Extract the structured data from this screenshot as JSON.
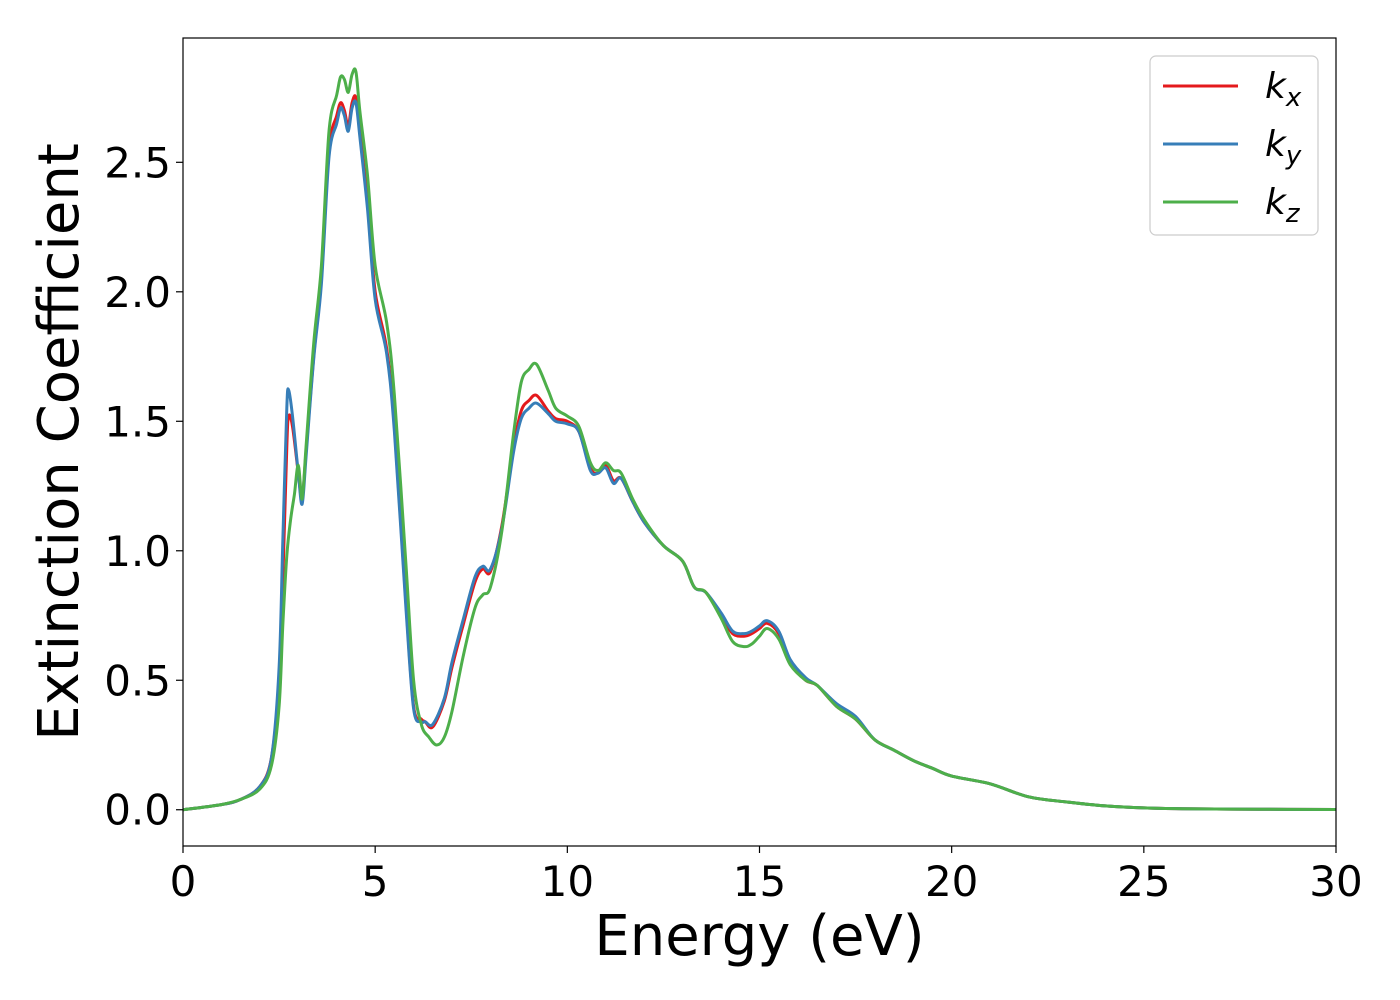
{
  "chart_data": {
    "type": "line",
    "xlabel": "Energy (eV)",
    "ylabel": "Extinction Coefficient",
    "xlim": [
      0,
      30
    ],
    "ylim": [
      -0.14,
      2.98
    ],
    "xticks": [
      0,
      5,
      10,
      15,
      20,
      25,
      30
    ],
    "xtick_labels": [
      "0",
      "5",
      "10",
      "15",
      "20",
      "25",
      "30"
    ],
    "yticks": [
      0.0,
      0.5,
      1.0,
      1.5,
      2.0,
      2.5
    ],
    "ytick_labels": [
      "0.0",
      "0.5",
      "1.0",
      "1.5",
      "2.0",
      "2.5"
    ],
    "grid": false,
    "legend_position": "top-right",
    "series": [
      {
        "name": "k",
        "subscript": "x",
        "color": "#e41a1c",
        "x": [
          0,
          1,
          1.5,
          2,
          2.3,
          2.5,
          2.6,
          2.7,
          2.75,
          2.85,
          3.0,
          3.1,
          3.2,
          3.4,
          3.6,
          3.8,
          4.0,
          4.1,
          4.2,
          4.3,
          4.4,
          4.5,
          4.6,
          4.8,
          5.0,
          5.3,
          5.5,
          5.8,
          6.0,
          6.2,
          6.3,
          6.5,
          6.8,
          7.0,
          7.3,
          7.6,
          7.8,
          8.0,
          8.3,
          8.6,
          8.8,
          9.0,
          9.2,
          9.5,
          9.7,
          10.0,
          10.3,
          10.6,
          10.8,
          11.0,
          11.2,
          11.4,
          11.7,
          12.0,
          12.5,
          13.0,
          13.3,
          13.6,
          14.0,
          14.3,
          14.6,
          14.8,
          15.0,
          15.2,
          15.5,
          15.8,
          16.2,
          16.5,
          17.0,
          17.5,
          18.0,
          18.5,
          19.0,
          19.5,
          20.0,
          21.0,
          22.0,
          23.0,
          24.0,
          25.0,
          26.0,
          28.0,
          30.0
        ],
        "y": [
          0,
          0.02,
          0.04,
          0.09,
          0.2,
          0.5,
          0.9,
          1.4,
          1.52,
          1.48,
          1.3,
          1.2,
          1.38,
          1.75,
          2.05,
          2.55,
          2.68,
          2.73,
          2.7,
          2.64,
          2.73,
          2.75,
          2.62,
          2.35,
          2.0,
          1.78,
          1.48,
          0.8,
          0.4,
          0.35,
          0.34,
          0.32,
          0.42,
          0.55,
          0.72,
          0.88,
          0.93,
          0.92,
          1.1,
          1.4,
          1.54,
          1.58,
          1.6,
          1.54,
          1.51,
          1.5,
          1.46,
          1.32,
          1.3,
          1.33,
          1.27,
          1.28,
          1.19,
          1.11,
          1.02,
          0.96,
          0.86,
          0.84,
          0.75,
          0.68,
          0.67,
          0.68,
          0.7,
          0.72,
          0.68,
          0.57,
          0.5,
          0.48,
          0.4,
          0.35,
          0.27,
          0.23,
          0.19,
          0.16,
          0.13,
          0.1,
          0.05,
          0.03,
          0.015,
          0.007,
          0.004,
          0.002,
          0.001
        ]
      },
      {
        "name": "k",
        "subscript": "y",
        "color": "#377eb8",
        "x": [
          0,
          1,
          1.5,
          2,
          2.3,
          2.5,
          2.6,
          2.7,
          2.75,
          2.85,
          3.0,
          3.1,
          3.2,
          3.4,
          3.6,
          3.8,
          4.0,
          4.1,
          4.2,
          4.3,
          4.4,
          4.5,
          4.6,
          4.8,
          5.0,
          5.3,
          5.5,
          5.8,
          6.0,
          6.2,
          6.3,
          6.5,
          6.8,
          7.0,
          7.3,
          7.6,
          7.8,
          8.0,
          8.3,
          8.6,
          8.8,
          9.0,
          9.2,
          9.5,
          9.7,
          10.0,
          10.3,
          10.6,
          10.8,
          11.0,
          11.2,
          11.4,
          11.7,
          12.0,
          12.5,
          13.0,
          13.3,
          13.6,
          14.0,
          14.3,
          14.6,
          14.8,
          15.0,
          15.2,
          15.5,
          15.8,
          16.2,
          16.5,
          17.0,
          17.5,
          18.0,
          18.5,
          19.0,
          19.5,
          20.0,
          21.0,
          22.0,
          23.0,
          24.0,
          25.0,
          26.0,
          28.0,
          30.0
        ],
        "y": [
          0,
          0.02,
          0.04,
          0.09,
          0.2,
          0.55,
          1.05,
          1.55,
          1.62,
          1.52,
          1.3,
          1.18,
          1.36,
          1.74,
          2.03,
          2.52,
          2.65,
          2.71,
          2.68,
          2.62,
          2.71,
          2.73,
          2.6,
          2.32,
          1.97,
          1.76,
          1.46,
          0.78,
          0.39,
          0.34,
          0.34,
          0.33,
          0.43,
          0.57,
          0.74,
          0.9,
          0.94,
          0.93,
          1.09,
          1.38,
          1.51,
          1.55,
          1.57,
          1.53,
          1.5,
          1.49,
          1.46,
          1.31,
          1.3,
          1.32,
          1.26,
          1.28,
          1.19,
          1.11,
          1.02,
          0.96,
          0.86,
          0.84,
          0.76,
          0.69,
          0.68,
          0.69,
          0.71,
          0.73,
          0.69,
          0.58,
          0.51,
          0.48,
          0.41,
          0.36,
          0.27,
          0.23,
          0.19,
          0.16,
          0.13,
          0.1,
          0.05,
          0.03,
          0.015,
          0.007,
          0.004,
          0.002,
          0.001
        ]
      },
      {
        "name": "k",
        "subscript": "z",
        "color": "#4daf4a",
        "x": [
          0,
          1,
          1.5,
          2,
          2.3,
          2.5,
          2.6,
          2.7,
          2.8,
          2.9,
          3.0,
          3.1,
          3.2,
          3.4,
          3.6,
          3.8,
          4.0,
          4.1,
          4.2,
          4.3,
          4.4,
          4.5,
          4.6,
          4.8,
          5.0,
          5.3,
          5.5,
          5.8,
          6.0,
          6.2,
          6.4,
          6.6,
          6.8,
          7.0,
          7.3,
          7.6,
          7.8,
          8.0,
          8.3,
          8.6,
          8.8,
          9.0,
          9.2,
          9.5,
          9.7,
          10.0,
          10.3,
          10.6,
          10.8,
          11.0,
          11.2,
          11.4,
          11.7,
          12.0,
          12.5,
          13.0,
          13.3,
          13.6,
          14.0,
          14.3,
          14.6,
          14.8,
          15.0,
          15.2,
          15.5,
          15.8,
          16.2,
          16.5,
          17.0,
          17.5,
          18.0,
          18.5,
          19.0,
          19.5,
          20.0,
          21.0,
          22.0,
          23.0,
          24.0,
          25.0,
          26.0,
          28.0,
          30.0
        ],
        "y": [
          0,
          0.02,
          0.04,
          0.08,
          0.17,
          0.4,
          0.72,
          0.98,
          1.12,
          1.22,
          1.33,
          1.2,
          1.4,
          1.8,
          2.1,
          2.62,
          2.76,
          2.83,
          2.82,
          2.77,
          2.84,
          2.85,
          2.7,
          2.45,
          2.1,
          1.88,
          1.6,
          0.95,
          0.5,
          0.33,
          0.28,
          0.25,
          0.28,
          0.38,
          0.6,
          0.78,
          0.83,
          0.86,
          1.08,
          1.45,
          1.65,
          1.7,
          1.72,
          1.62,
          1.55,
          1.52,
          1.48,
          1.34,
          1.31,
          1.34,
          1.31,
          1.3,
          1.2,
          1.12,
          1.02,
          0.96,
          0.86,
          0.84,
          0.74,
          0.65,
          0.63,
          0.64,
          0.67,
          0.7,
          0.66,
          0.56,
          0.5,
          0.48,
          0.4,
          0.35,
          0.27,
          0.23,
          0.19,
          0.16,
          0.13,
          0.1,
          0.05,
          0.03,
          0.015,
          0.007,
          0.004,
          0.002,
          0.001
        ]
      }
    ]
  }
}
